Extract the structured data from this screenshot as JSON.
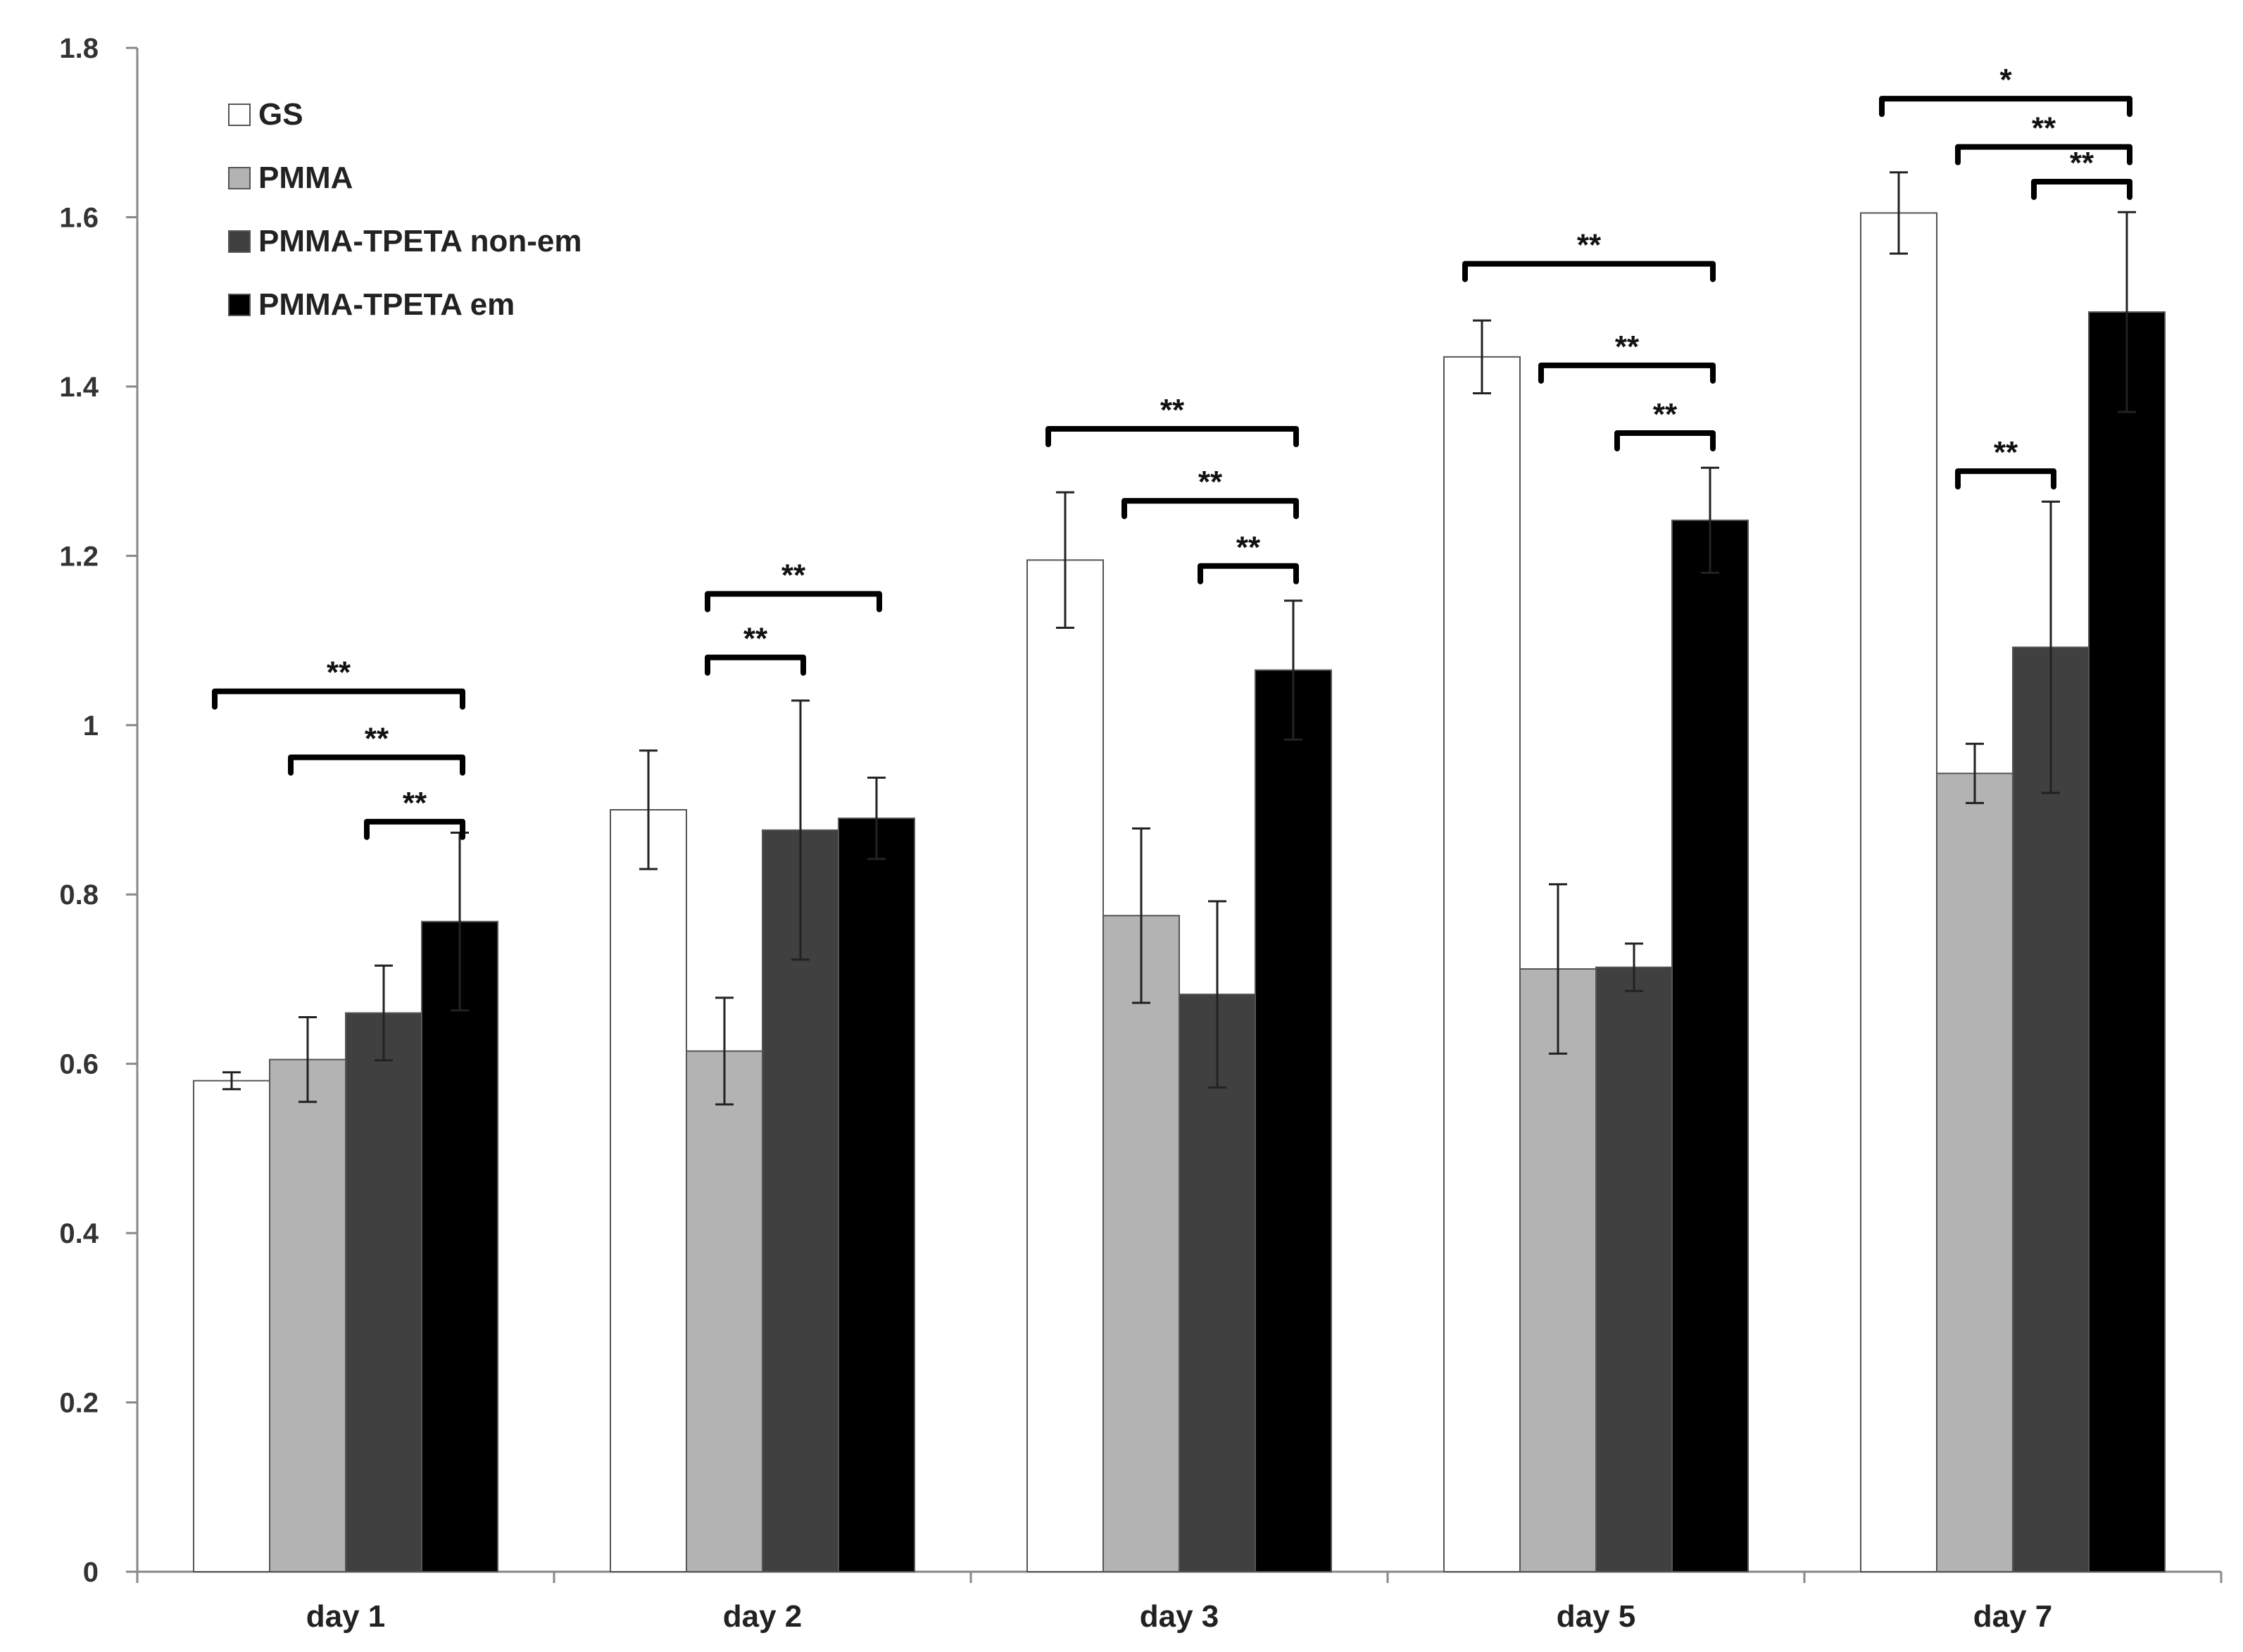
{
  "chart_data": {
    "type": "bar",
    "title": "",
    "xlabel": "",
    "ylabel": "",
    "ylim": [
      0,
      1.8
    ],
    "yticks": [
      "0",
      "0.2",
      "0.4",
      "0.6",
      "0.8",
      "1",
      "1.2",
      "1.4",
      "1.6",
      "1.8"
    ],
    "ytick_values": [
      0,
      0.2,
      0.4,
      0.6,
      0.8,
      1.0,
      1.2,
      1.4,
      1.6,
      1.8
    ],
    "grid": false,
    "legend_position": "top-left",
    "categories": [
      "day 1",
      "day 2",
      "day 3",
      "day 5",
      "day 7"
    ],
    "series": [
      {
        "name": "GS",
        "color": "#ffffff",
        "values": [
          0.58,
          0.9,
          1.195,
          1.435,
          1.605
        ],
        "errors": [
          0.01,
          0.07,
          0.08,
          0.043,
          0.048
        ]
      },
      {
        "name": "PMMA",
        "color": "#b3b3b3",
        "values": [
          0.605,
          0.615,
          0.775,
          0.712,
          0.943
        ],
        "errors": [
          0.05,
          0.063,
          0.103,
          0.1,
          0.035
        ]
      },
      {
        "name": "PMMA-TPETA non-em",
        "color": "#404040",
        "values": [
          0.66,
          0.876,
          0.682,
          0.714,
          1.092
        ],
        "errors": [
          0.056,
          0.153,
          0.11,
          0.028,
          0.172
        ]
      },
      {
        "name": "PMMA-TPETA em",
        "color": "#000000",
        "values": [
          0.768,
          0.89,
          1.065,
          1.242,
          1.488
        ],
        "errors": [
          0.105,
          0.048,
          0.082,
          0.062,
          0.118
        ]
      }
    ],
    "significance": [
      {
        "category": 0,
        "from": 0,
        "to": 3,
        "level": 1.04,
        "label": "**"
      },
      {
        "category": 0,
        "from": 1,
        "to": 3,
        "level": 0.962,
        "label": "**"
      },
      {
        "category": 0,
        "from": 2,
        "to": 3,
        "level": 0.886,
        "label": "**"
      },
      {
        "category": 1,
        "from": 1,
        "to": 3,
        "level": 1.155,
        "label": "**"
      },
      {
        "category": 1,
        "from": 1,
        "to": 2,
        "level": 1.08,
        "label": "**"
      },
      {
        "category": 2,
        "from": 0,
        "to": 3,
        "level": 1.35,
        "label": "**"
      },
      {
        "category": 2,
        "from": 1,
        "to": 3,
        "level": 1.265,
        "label": "**"
      },
      {
        "category": 2,
        "from": 2,
        "to": 3,
        "level": 1.188,
        "label": "**"
      },
      {
        "category": 3,
        "from": 0,
        "to": 3,
        "level": 1.545,
        "label": "**"
      },
      {
        "category": 3,
        "from": 1,
        "to": 3,
        "level": 1.425,
        "label": "**"
      },
      {
        "category": 3,
        "from": 2,
        "to": 3,
        "level": 1.345,
        "label": "**"
      },
      {
        "category": 4,
        "from": 0,
        "to": 3,
        "level": 1.74,
        "label": "*"
      },
      {
        "category": 4,
        "from": 1,
        "to": 3,
        "level": 1.683,
        "label": "**"
      },
      {
        "category": 4,
        "from": 2,
        "to": 3,
        "level": 1.642,
        "label": "**"
      },
      {
        "category": 4,
        "from": 1,
        "to": 2,
        "level": 1.3,
        "label": "**"
      }
    ]
  }
}
